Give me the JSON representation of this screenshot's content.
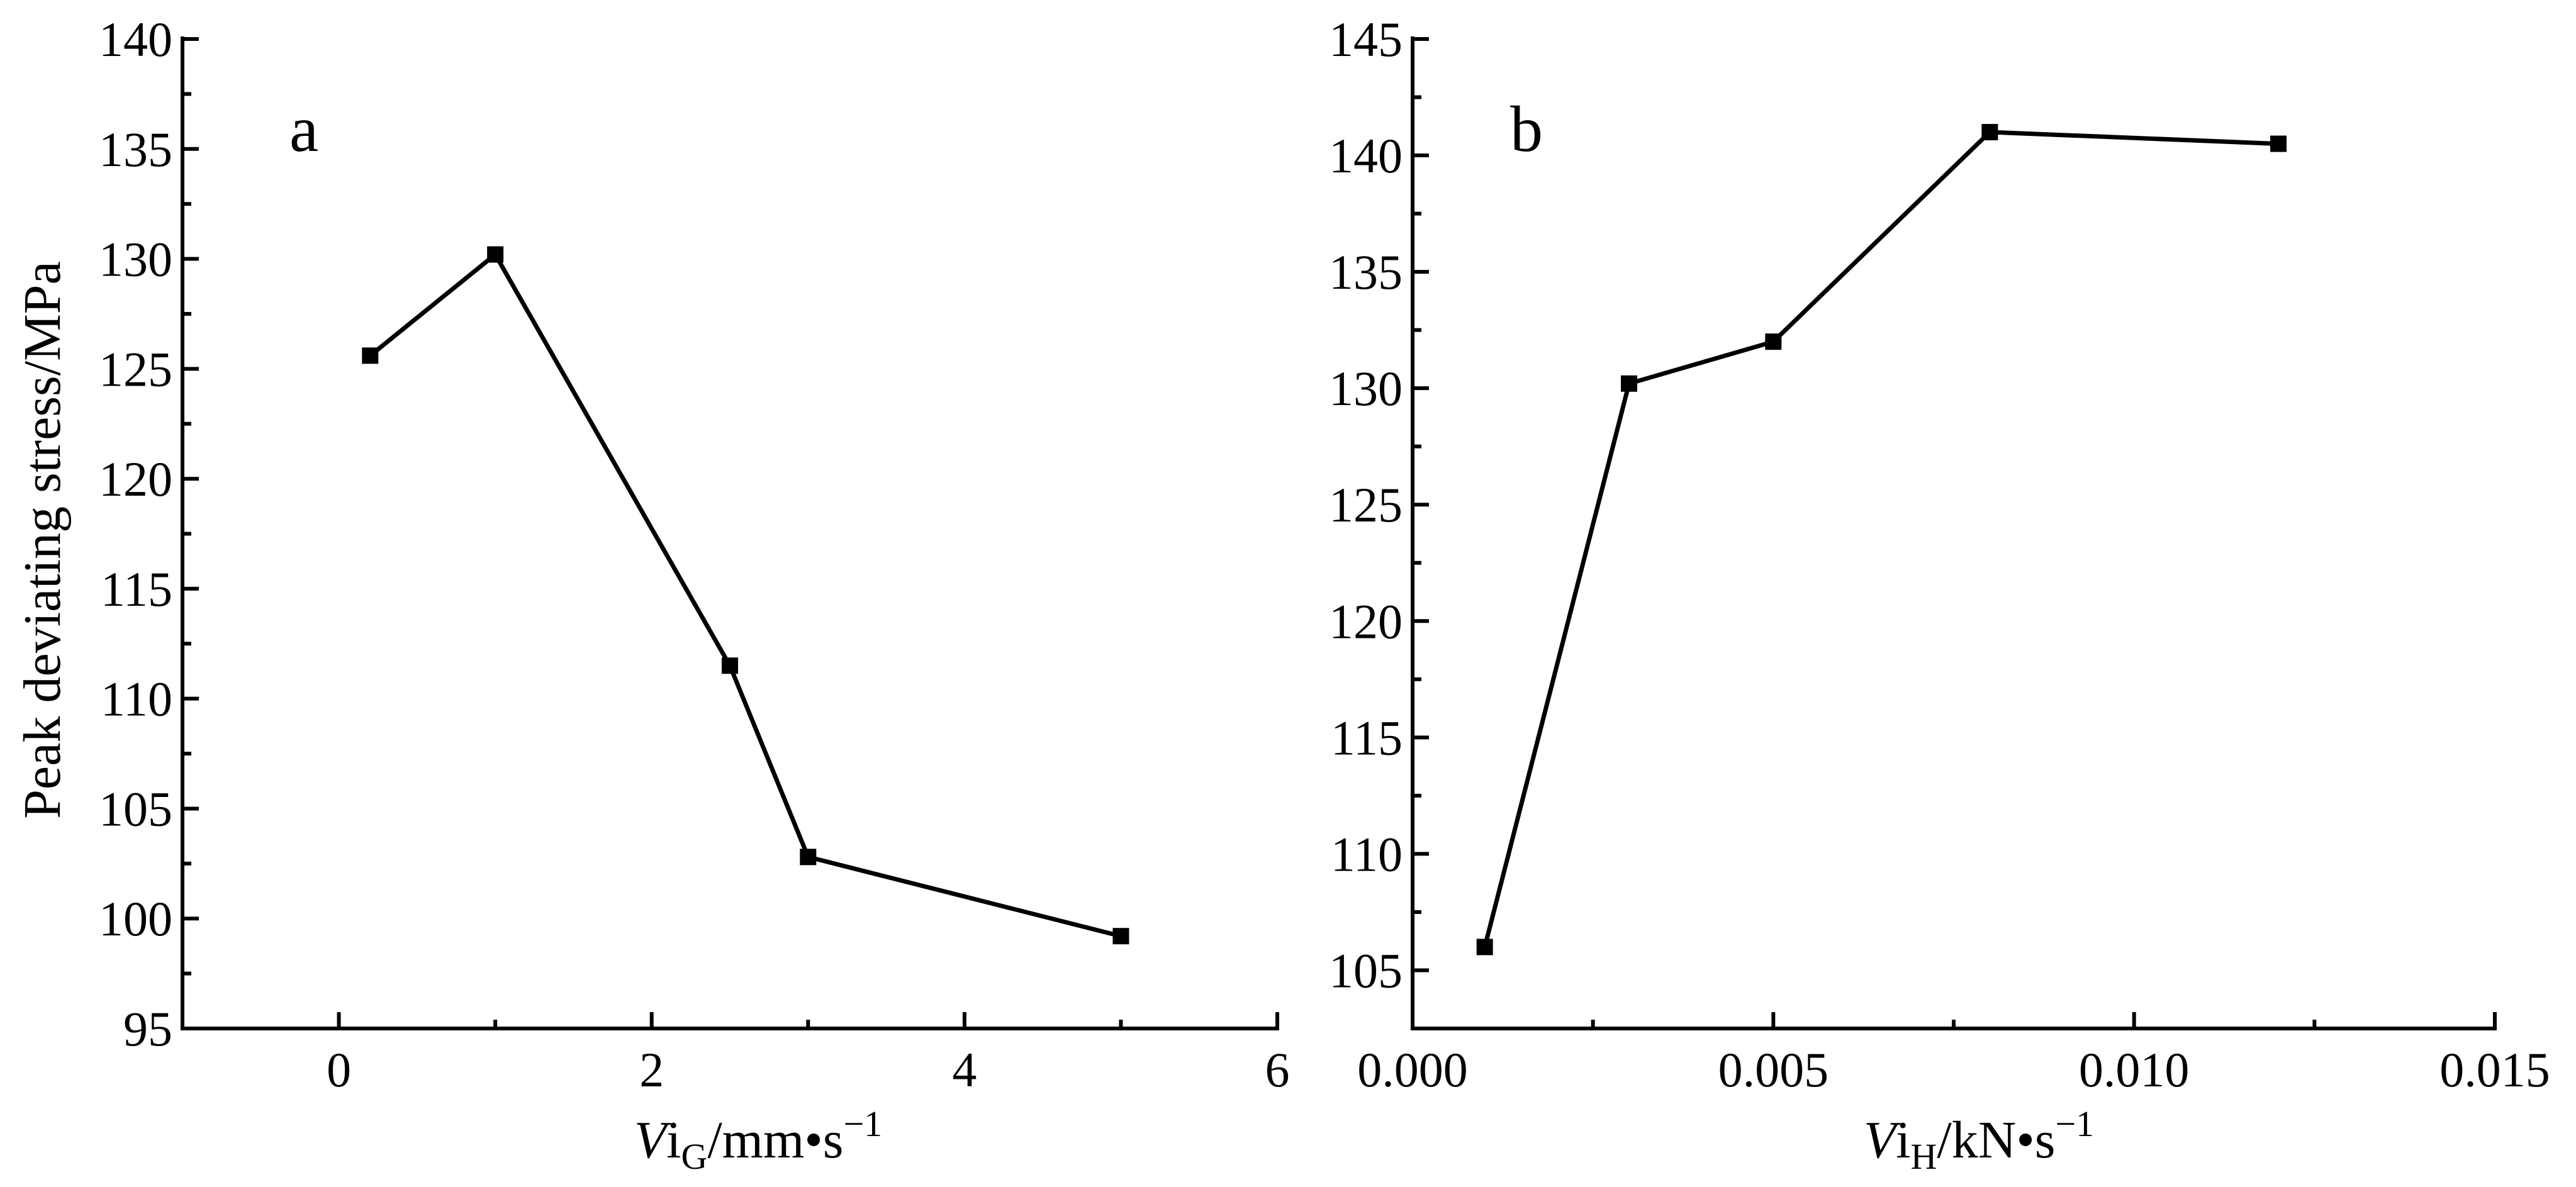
{
  "chart_data": [
    {
      "type": "line",
      "panel_label": "a",
      "ylabel": "Peak deviating stress/MPa",
      "xlabel": {
        "main": "Vi",
        "subscript": "G",
        "unit": "/mm•s",
        "exponent": "−1"
      },
      "xlim": [
        -1,
        6
      ],
      "ylim": [
        95,
        140
      ],
      "xticks": [
        0,
        2,
        4,
        6
      ],
      "xtick_labels": [
        "0",
        "2",
        "4",
        "6"
      ],
      "yticks": [
        95,
        100,
        105,
        110,
        115,
        120,
        125,
        130,
        135,
        140
      ],
      "ytick_labels": [
        "95",
        "100",
        "105",
        "110",
        "115",
        "120",
        "125",
        "130",
        "135",
        "140"
      ],
      "grid": false,
      "marker": "square",
      "series": [
        {
          "x": [
            0.2,
            1,
            2.5,
            3,
            5
          ],
          "y": [
            125.6,
            130.2,
            111.5,
            102.8,
            99.2
          ]
        }
      ]
    },
    {
      "type": "line",
      "panel_label": "b",
      "ylabel": "",
      "xlabel": {
        "main": "Vi",
        "subscript": "H",
        "unit": "/kN•s",
        "exponent": "−1"
      },
      "xlim": [
        0,
        0.015
      ],
      "ylim": [
        102.5,
        145
      ],
      "xticks": [
        0,
        0.005,
        0.01,
        0.015
      ],
      "xtick_labels": [
        "0.000",
        "0.005",
        "0.010",
        "0.015"
      ],
      "yticks": [
        105,
        110,
        115,
        120,
        125,
        130,
        135,
        140,
        145
      ],
      "ytick_labels": [
        "105",
        "110",
        "115",
        "120",
        "125",
        "130",
        "135",
        "140",
        "145"
      ],
      "grid": false,
      "marker": "square",
      "series": [
        {
          "x": [
            0.001,
            0.003,
            0.005,
            0.008,
            0.012
          ],
          "y": [
            106,
            130.2,
            132,
            141,
            140.5
          ]
        }
      ]
    }
  ]
}
